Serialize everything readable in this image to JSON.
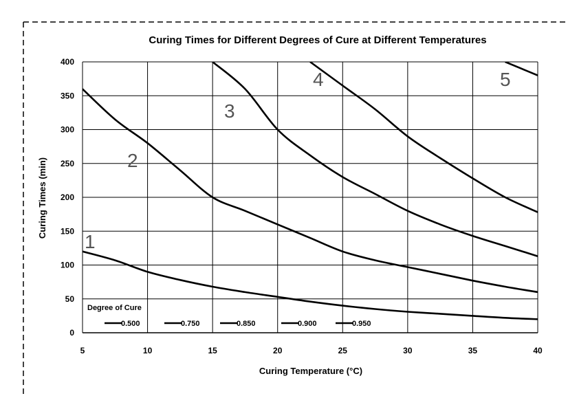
{
  "chart_data": {
    "type": "line",
    "title": "Curing Times for Different Degrees of Cure at Different Temperatures",
    "xlabel": "Curing Temperature (°C)",
    "ylabel": "Curing Times (min)",
    "xlim": [
      5,
      40
    ],
    "ylim": [
      0,
      400
    ],
    "x_ticks": [
      5,
      10,
      15,
      20,
      25,
      30,
      35,
      40
    ],
    "y_ticks": [
      0,
      50,
      100,
      150,
      200,
      250,
      300,
      350,
      400
    ],
    "grid": true,
    "legend": {
      "title": "Degree of Cure",
      "placement": "bottom-left"
    },
    "line_color": "#000000",
    "label_color": "#555555",
    "x": [
      5,
      7.5,
      10,
      12.5,
      15,
      17.5,
      20,
      22.5,
      25,
      27.5,
      30,
      32.5,
      35,
      37.5,
      40
    ],
    "series": [
      {
        "name": "0.500",
        "curve_label": "1",
        "values": [
          120,
          107,
          90,
          78,
          68,
          60,
          53,
          46,
          40,
          35,
          31,
          28,
          25,
          22,
          20
        ]
      },
      {
        "name": "0.750",
        "curve_label": "2",
        "values": [
          360,
          315,
          280,
          240,
          200,
          180,
          160,
          140,
          120,
          107,
          97,
          87,
          77,
          68,
          60
        ]
      },
      {
        "name": "0.850",
        "curve_label": "3",
        "values": [
          null,
          null,
          null,
          null,
          400,
          360,
          300,
          262,
          230,
          205,
          180,
          160,
          143,
          128,
          113
        ]
      },
      {
        "name": "0.900",
        "curve_label": "4",
        "values": [
          null,
          null,
          null,
          null,
          null,
          null,
          null,
          400,
          365,
          330,
          290,
          258,
          228,
          200,
          178
        ]
      },
      {
        "name": "0.950",
        "curve_label": "5",
        "values": [
          null,
          null,
          null,
          null,
          null,
          null,
          null,
          null,
          null,
          null,
          null,
          null,
          null,
          400,
          380
        ]
      }
    ]
  }
}
